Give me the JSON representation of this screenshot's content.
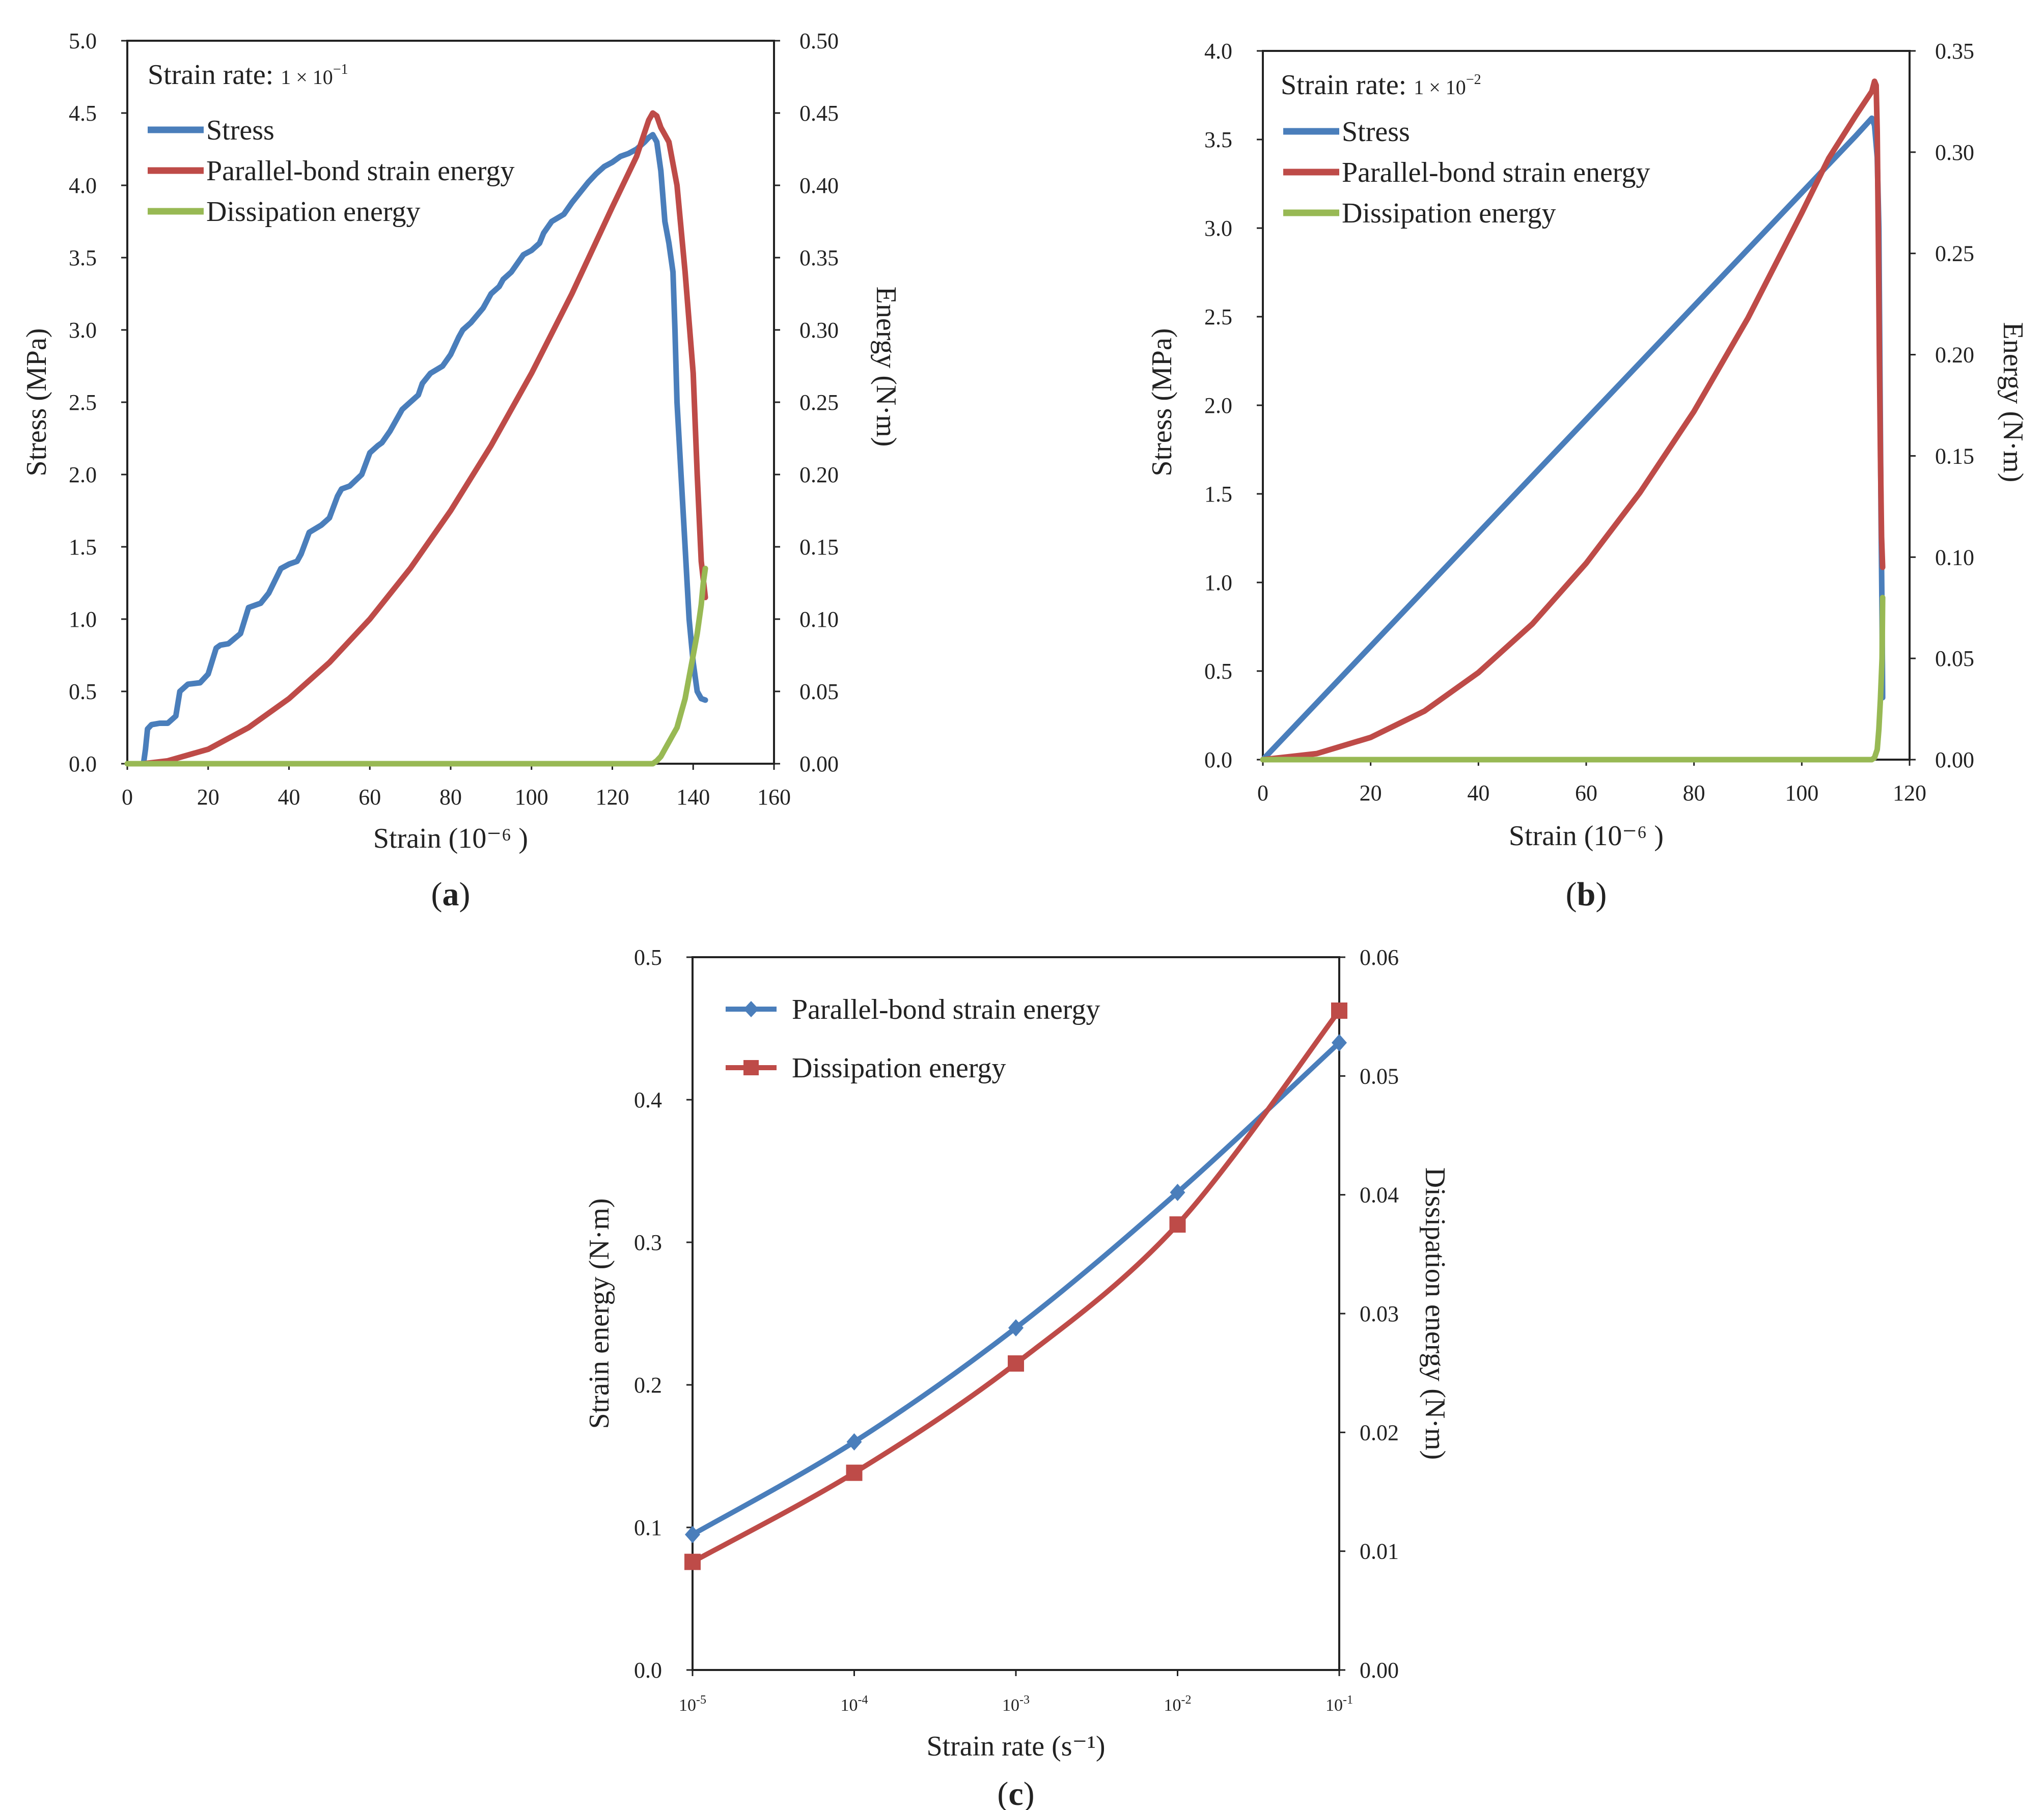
{
  "figure": {
    "panels": [
      "a",
      "b",
      "c"
    ]
  },
  "chart_data": [
    {
      "id": "a",
      "type": "line",
      "panel_label": "a",
      "annotation": {
        "prefix": "Strain rate: ",
        "value": "1 × 10",
        "exp": "−1"
      },
      "xlabel": "Strain (10⁻⁶ )",
      "ylabel": "Stress (MPa)",
      "y2label": "Energy (N·m)",
      "xlim": [
        0,
        160
      ],
      "xticks": [
        0,
        20,
        40,
        60,
        80,
        100,
        120,
        140,
        160
      ],
      "ylim": [
        0,
        5
      ],
      "yticks": [
        "0.0",
        "0.5",
        "1.0",
        "1.5",
        "2.0",
        "2.5",
        "3.0",
        "3.5",
        "4.0",
        "4.5",
        "5.0"
      ],
      "y2lim": [
        0,
        0.5
      ],
      "y2ticks": [
        "0.00",
        "0.05",
        "0.10",
        "0.15",
        "0.20",
        "0.25",
        "0.30",
        "0.35",
        "0.40",
        "0.45",
        "0.50"
      ],
      "legend": [
        "Stress",
        "Parallel-bond strain energy",
        "Dissipation energy"
      ],
      "colors": {
        "stress": "#4a7ebb",
        "strain_energy": "#be4b48",
        "dissipation": "#98b954"
      },
      "series": [
        {
          "name": "Stress",
          "axis": "left",
          "color": "#4a7ebb",
          "x": [
            4,
            4.5,
            5,
            6,
            8,
            10,
            12,
            13,
            15,
            18,
            20,
            22,
            23,
            25,
            28,
            30,
            32,
            33,
            35,
            38,
            40,
            42,
            43,
            45,
            48,
            50,
            52,
            53,
            55,
            58,
            60,
            62,
            63,
            65,
            68,
            70,
            72,
            73,
            75,
            78,
            80,
            82,
            83,
            85,
            88,
            90,
            92,
            93,
            95,
            98,
            100,
            102,
            103,
            105,
            108,
            110,
            112,
            114,
            116,
            118,
            120,
            122,
            124,
            126,
            128,
            129,
            130,
            131,
            132,
            133,
            134,
            135,
            135.5,
            136,
            137,
            138,
            139,
            140,
            141,
            142,
            143
          ],
          "y": [
            0,
            0.1,
            0.24,
            0.27,
            0.28,
            0.28,
            0.33,
            0.5,
            0.55,
            0.56,
            0.62,
            0.8,
            0.82,
            0.83,
            0.9,
            1.08,
            1.1,
            1.11,
            1.18,
            1.35,
            1.38,
            1.4,
            1.45,
            1.6,
            1.65,
            1.7,
            1.85,
            1.9,
            1.92,
            2.0,
            2.15,
            2.2,
            2.22,
            2.3,
            2.45,
            2.5,
            2.55,
            2.63,
            2.7,
            2.75,
            2.83,
            2.95,
            3.0,
            3.05,
            3.15,
            3.25,
            3.3,
            3.35,
            3.4,
            3.52,
            3.55,
            3.6,
            3.67,
            3.75,
            3.8,
            3.88,
            3.95,
            4.02,
            4.08,
            4.13,
            4.16,
            4.2,
            4.22,
            4.25,
            4.3,
            4.33,
            4.35,
            4.3,
            4.1,
            3.75,
            3.6,
            3.4,
            3.0,
            2.5,
            2.0,
            1.5,
            1.0,
            0.7,
            0.5,
            0.45,
            0.44
          ]
        },
        {
          "name": "Parallel-bond strain energy",
          "axis": "right",
          "color": "#be4b48",
          "x": [
            4,
            10,
            20,
            30,
            40,
            50,
            60,
            70,
            80,
            90,
            100,
            110,
            120,
            126,
            129,
            130,
            131,
            132,
            133,
            134,
            136,
            138,
            140,
            141,
            142,
            143
          ],
          "y": [
            0,
            0.002,
            0.01,
            0.025,
            0.045,
            0.07,
            0.1,
            0.135,
            0.175,
            0.22,
            0.27,
            0.325,
            0.385,
            0.42,
            0.445,
            0.45,
            0.448,
            0.44,
            0.435,
            0.43,
            0.4,
            0.34,
            0.27,
            0.2,
            0.14,
            0.115
          ]
        },
        {
          "name": "Dissipation energy",
          "axis": "right",
          "color": "#98b954",
          "x": [
            0,
            40,
            80,
            120,
            129,
            130,
            131,
            132,
            133,
            134,
            136,
            137,
            138,
            139,
            140,
            141,
            142,
            142.5,
            143
          ],
          "y": [
            0,
            0,
            0,
            0,
            0,
            0,
            0.002,
            0.005,
            0.01,
            0.015,
            0.025,
            0.035,
            0.045,
            0.06,
            0.075,
            0.09,
            0.11,
            0.125,
            0.135
          ]
        }
      ]
    },
    {
      "id": "b",
      "type": "line",
      "panel_label": "b",
      "annotation": {
        "prefix": "Strain rate: ",
        "value": "1 × 10",
        "exp": "−2"
      },
      "xlabel": "Strain (10⁻⁶ )",
      "ylabel": "Stress (MPa)",
      "y2label": "Energy (N·m)",
      "xlim": [
        0,
        120
      ],
      "xticks": [
        0,
        20,
        40,
        60,
        80,
        100,
        120
      ],
      "ylim": [
        0,
        4
      ],
      "yticks": [
        "0.0",
        "0.5",
        "1.0",
        "1.5",
        "2.0",
        "2.5",
        "3.0",
        "3.5",
        "4.0"
      ],
      "y2lim": [
        0,
        0.35
      ],
      "y2ticks": [
        "0.00",
        "0.05",
        "0.10",
        "0.15",
        "0.20",
        "0.25",
        "0.30",
        "0.35"
      ],
      "legend": [
        "Stress",
        "Parallel-bond strain energy",
        "Dissipation energy"
      ],
      "colors": {
        "stress": "#4a7ebb",
        "strain_energy": "#be4b48",
        "dissipation": "#98b954"
      },
      "series": [
        {
          "name": "Stress",
          "axis": "left",
          "color": "#4a7ebb",
          "x": [
            0,
            20,
            40,
            60,
            80,
            100,
            110,
            113,
            113.5,
            114,
            114.3,
            114.5,
            114.7,
            114.9,
            115
          ],
          "y": [
            0,
            0.64,
            1.28,
            1.92,
            2.56,
            3.2,
            3.52,
            3.62,
            3.58,
            3.4,
            3.0,
            2.2,
            1.4,
            0.8,
            0.35
          ]
        },
        {
          "name": "Parallel-bond strain energy",
          "axis": "right",
          "color": "#be4b48",
          "x": [
            0,
            10,
            20,
            30,
            40,
            50,
            60,
            70,
            80,
            90,
            100,
            105,
            110,
            112,
            113,
            113.5,
            113.8,
            114,
            114.2,
            114.4,
            114.6,
            114.8,
            115
          ],
          "y": [
            0,
            0.003,
            0.011,
            0.024,
            0.043,
            0.067,
            0.097,
            0.132,
            0.172,
            0.218,
            0.27,
            0.297,
            0.318,
            0.326,
            0.33,
            0.335,
            0.333,
            0.31,
            0.26,
            0.2,
            0.15,
            0.11,
            0.095
          ]
        },
        {
          "name": "Dissipation energy",
          "axis": "right",
          "color": "#98b954",
          "x": [
            0,
            60,
            113,
            113.5,
            114,
            114.3,
            114.6,
            114.9,
            115
          ],
          "y": [
            0,
            0,
            0,
            0.001,
            0.005,
            0.015,
            0.03,
            0.05,
            0.08
          ]
        }
      ]
    },
    {
      "id": "c",
      "type": "line",
      "panel_label": "c",
      "xlabel": "Strain rate (s⁻¹)",
      "ylabel": "Strain energy (N·m)",
      "y2label": "Dissipation energy (N·m)",
      "categories": [
        "10-5",
        "10-4",
        "10-3",
        "10-2",
        "10-1"
      ],
      "ylim": [
        0,
        0.5
      ],
      "yticks": [
        "0.0",
        "0.1",
        "0.2",
        "0.3",
        "0.4",
        "0.5"
      ],
      "y2lim": [
        0,
        0.06
      ],
      "y2ticks": [
        "0.00",
        "0.01",
        "0.02",
        "0.03",
        "0.04",
        "0.05",
        "0.06"
      ],
      "legend": [
        "Parallel-bond strain energy",
        "Dissipation energy"
      ],
      "series": [
        {
          "name": "Parallel-bond strain energy",
          "axis": "left",
          "color": "#4a7ebb",
          "marker": "diamond",
          "values": [
            0.095,
            0.16,
            0.24,
            0.335,
            0.44
          ]
        },
        {
          "name": "Dissipation energy",
          "axis": "right",
          "color": "#be4b48",
          "marker": "square",
          "values": [
            0.0091,
            0.0166,
            0.0258,
            0.0375,
            0.0555
          ]
        }
      ]
    }
  ]
}
